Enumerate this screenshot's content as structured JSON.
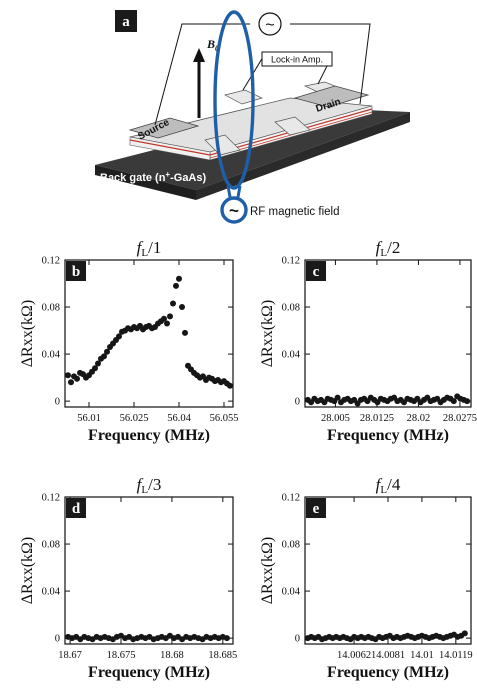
{
  "diagram": {
    "panel_label": "a",
    "b0_label": "B",
    "b0_subscript": "0",
    "lockin_label": "Lock-in Amp.",
    "source_label": "Source",
    "drain_label": "Drain",
    "backgate_label": "Back gate (n",
    "backgate_sup": "+",
    "backgate_tail": "-GaAs)",
    "rf_label": "RF magnetic field",
    "ac_symbol": "~",
    "colors": {
      "loop": "#1f5fa8",
      "stripe": "#c0392b",
      "board": "#2a2a2a",
      "bar": "#d9d9d9"
    }
  },
  "chart_data": [
    {
      "type": "scatter",
      "panel": "b",
      "title_main": "f",
      "title_sub": "L",
      "title_tail": "/1",
      "xlabel": "Frequency (MHz)",
      "ylabel": "ΔRxx(kΩ)",
      "xlim": [
        56.002,
        56.058
      ],
      "ylim": [
        -0.005,
        0.12
      ],
      "xticks": [
        56.01,
        56.025,
        56.04,
        56.055
      ],
      "xtick_labels": [
        "56.01",
        "56.025",
        "56.04",
        "56.055"
      ],
      "yticks": [
        0,
        0.04,
        0.08,
        0.12
      ],
      "ytick_labels": [
        "0",
        "0.04",
        "0.08",
        "0.12"
      ],
      "x": [
        56.003,
        56.004,
        56.005,
        56.006,
        56.007,
        56.008,
        56.009,
        56.01,
        56.011,
        56.012,
        56.013,
        56.014,
        56.015,
        56.016,
        56.017,
        56.018,
        56.019,
        56.02,
        56.021,
        56.022,
        56.023,
        56.024,
        56.025,
        56.026,
        56.027,
        56.028,
        56.029,
        56.03,
        56.031,
        56.032,
        56.033,
        56.034,
        56.035,
        56.036,
        56.037,
        56.038,
        56.039,
        56.04,
        56.041,
        56.042,
        56.043,
        56.044,
        56.045,
        56.046,
        56.047,
        56.048,
        56.049,
        56.05,
        56.051,
        56.052,
        56.053,
        56.054,
        56.055,
        56.056,
        56.057
      ],
      "y": [
        0.022,
        0.016,
        0.021,
        0.019,
        0.024,
        0.023,
        0.02,
        0.022,
        0.025,
        0.028,
        0.032,
        0.036,
        0.038,
        0.042,
        0.046,
        0.049,
        0.052,
        0.055,
        0.059,
        0.06,
        0.062,
        0.061,
        0.063,
        0.062,
        0.064,
        0.061,
        0.063,
        0.064,
        0.062,
        0.063,
        0.066,
        0.068,
        0.07,
        0.066,
        0.072,
        0.083,
        0.098,
        0.104,
        0.08,
        0.058,
        0.03,
        0.027,
        0.024,
        0.022,
        0.02,
        0.021,
        0.018,
        0.02,
        0.019,
        0.017,
        0.018,
        0.016,
        0.017,
        0.015,
        0.013
      ]
    },
    {
      "type": "scatter",
      "panel": "c",
      "title_main": "f",
      "title_sub": "L",
      "title_tail": "/2",
      "xlabel": "Frequency (MHz)",
      "ylabel": "ΔRxx(kΩ)",
      "xlim": [
        27.9995,
        28.0295
      ],
      "ylim": [
        -0.005,
        0.12
      ],
      "xticks": [
        28.005,
        28.0125,
        28.02,
        28.0275
      ],
      "xtick_labels": [
        "28.005",
        "28.0125",
        "28.02",
        "28.0275"
      ],
      "yticks": [
        0,
        0.04,
        0.08,
        0.12
      ],
      "ytick_labels": [
        "0",
        "0.04",
        "0.08",
        "0.12"
      ],
      "x": [
        28.0,
        28.0006,
        28.0012,
        28.0018,
        28.0024,
        28.003,
        28.0036,
        28.0042,
        28.0048,
        28.0054,
        28.006,
        28.0066,
        28.0072,
        28.0078,
        28.0084,
        28.009,
        28.0096,
        28.0102,
        28.0108,
        28.0114,
        28.012,
        28.0126,
        28.0132,
        28.0138,
        28.0144,
        28.015,
        28.0156,
        28.0162,
        28.0168,
        28.0174,
        28.018,
        28.0186,
        28.0192,
        28.0198,
        28.0204,
        28.021,
        28.0216,
        28.0222,
        28.0228,
        28.0234,
        28.024,
        28.0246,
        28.0252,
        28.0258,
        28.0264,
        28.027,
        28.0276,
        28.0282,
        28.0288
      ],
      "y": [
        0.001,
        -0.001,
        0.002,
        0.0,
        0.001,
        -0.001,
        0.002,
        0.001,
        0.0,
        0.003,
        -0.001,
        0.001,
        0.002,
        0.0,
        0.001,
        -0.002,
        0.001,
        0.002,
        0.0,
        0.003,
        0.001,
        -0.001,
        0.002,
        0.001,
        0.0,
        0.002,
        0.003,
        0.0,
        0.001,
        -0.001,
        0.002,
        0.001,
        0.0,
        0.002,
        -0.001,
        0.001,
        0.003,
        0.0,
        0.001,
        0.002,
        -0.001,
        0.001,
        0.003,
        0.002,
        0.0,
        0.004,
        0.002,
        0.001,
        0.0
      ]
    },
    {
      "type": "scatter",
      "panel": "d",
      "title_main": "f",
      "title_sub": "L",
      "title_tail": "/3",
      "xlabel": "Frequency (MHz)",
      "ylabel": "ΔRxx(kΩ)",
      "xlim": [
        18.6695,
        18.686
      ],
      "ylim": [
        -0.005,
        0.12
      ],
      "xticks": [
        18.67,
        18.675,
        18.68,
        18.685
      ],
      "xtick_labels": [
        "18.67",
        "18.675",
        "18.68",
        "18.685"
      ],
      "yticks": [
        0,
        0.04,
        0.08,
        0.12
      ],
      "ytick_labels": [
        "0",
        "0.04",
        "0.08",
        "0.12"
      ],
      "x": [
        18.6698,
        18.6702,
        18.6706,
        18.671,
        18.6714,
        18.6718,
        18.6722,
        18.6726,
        18.673,
        18.6734,
        18.6738,
        18.6742,
        18.6746,
        18.675,
        18.6754,
        18.6758,
        18.6762,
        18.6766,
        18.677,
        18.6774,
        18.6778,
        18.6782,
        18.6786,
        18.679,
        18.6794,
        18.6798,
        18.6802,
        18.6806,
        18.681,
        18.6814,
        18.6818,
        18.6822,
        18.6826,
        18.683,
        18.6834,
        18.6838,
        18.6842,
        18.6846,
        18.685,
        18.6854
      ],
      "y": [
        0.001,
        0.0,
        0.001,
        -0.001,
        0.001,
        0.0,
        -0.001,
        0.001,
        0.0,
        0.001,
        0.0,
        -0.001,
        0.001,
        0.002,
        0.0,
        0.001,
        -0.001,
        0.0,
        0.001,
        0.0,
        0.001,
        -0.001,
        0.0,
        0.001,
        0.0,
        0.002,
        0.0,
        0.001,
        -0.001,
        0.001,
        0.0,
        0.001,
        0.0,
        -0.001,
        0.001,
        0.0,
        0.001,
        0.0,
        0.001,
        0.0
      ]
    },
    {
      "type": "scatter",
      "panel": "e",
      "title_main": "f",
      "title_sub": "L",
      "title_tail": "/4",
      "xlabel": "Frequency (MHz)",
      "ylabel": "ΔRxx(kΩ)",
      "xlim": [
        14.00345,
        14.01275
      ],
      "ylim": [
        -0.005,
        0.12
      ],
      "xticks": [
        14.0062,
        14.0081,
        14.01,
        14.0119
      ],
      "xtick_labels": [
        "14.0062",
        "14.0081",
        "14.01",
        "14.0119"
      ],
      "yticks": [
        0,
        0.04,
        0.08,
        0.12
      ],
      "ytick_labels": [
        "0",
        "0.04",
        "0.08",
        "0.12"
      ],
      "x": [
        14.0036,
        14.0038,
        14.004,
        14.0042,
        14.0044,
        14.0046,
        14.0048,
        14.005,
        14.0052,
        14.0054,
        14.0056,
        14.0058,
        14.006,
        14.0062,
        14.0064,
        14.0066,
        14.0068,
        14.007,
        14.0072,
        14.0074,
        14.0076,
        14.0078,
        14.008,
        14.0082,
        14.0084,
        14.0086,
        14.0088,
        14.009,
        14.0092,
        14.0094,
        14.0096,
        14.0098,
        14.01,
        14.0102,
        14.0104,
        14.0106,
        14.0108,
        14.011,
        14.0112,
        14.0114,
        14.0116,
        14.0118,
        14.012,
        14.0122,
        14.0124
      ],
      "y": [
        0.0,
        0.001,
        0.0,
        0.001,
        -0.001,
        0.0,
        0.001,
        0.0,
        0.001,
        0.0,
        0.001,
        0.0,
        -0.001,
        0.001,
        0.0,
        0.001,
        0.0,
        0.001,
        0.0,
        -0.001,
        0.001,
        0.0,
        0.001,
        0.002,
        0.0,
        0.001,
        0.0,
        0.001,
        0.002,
        0.001,
        0.0,
        0.001,
        0.002,
        0.001,
        0.0,
        0.001,
        0.002,
        0.001,
        0.0,
        0.001,
        0.002,
        0.003,
        0.001,
        0.002,
        0.004
      ]
    }
  ]
}
